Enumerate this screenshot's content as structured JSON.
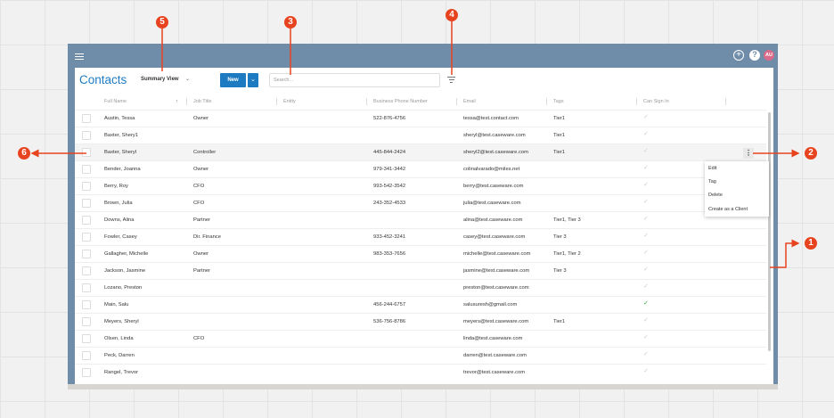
{
  "header": {
    "avatar": "AU",
    "add_icon": "plus-circle-icon",
    "help_icon": "help-icon"
  },
  "toolbar": {
    "title": "Contacts",
    "view": "Summary View",
    "new_label": "New",
    "search_placeholder": "Search..."
  },
  "columns": [
    "Full Name",
    "Job Title",
    "Entity",
    "Business Phone Number",
    "Email",
    "Tags",
    "Can Sign In"
  ],
  "rows": [
    {
      "name": "Austin, Tessa",
      "job": "Owner",
      "entity": "",
      "phone": "522-876-4756",
      "email": "tessa@test.contact.com",
      "tags": "Tier1",
      "sign": false
    },
    {
      "name": "Baxter, Shery1",
      "job": "",
      "entity": "",
      "phone": "",
      "email": "sheryl@test.caseware.com",
      "tags": "Tier1",
      "sign": false
    },
    {
      "name": "Baxter, Sheryl",
      "job": "Controller",
      "entity": "",
      "phone": "445-844-2424",
      "email": "sheryl2@test.caseware.com",
      "tags": "Tier1",
      "sign": false
    },
    {
      "name": "Bender, Joanna",
      "job": "Owner",
      "entity": "",
      "phone": "979-341-3442",
      "email": "colinalvarado@miles.net",
      "tags": "",
      "sign": false
    },
    {
      "name": "Berry, Roy",
      "job": "CFO",
      "entity": "",
      "phone": "993-542-3542",
      "email": "berry@test.caseware.com",
      "tags": "",
      "sign": false
    },
    {
      "name": "Brown, Julia",
      "job": "CFO",
      "entity": "",
      "phone": "243-352-4533",
      "email": "julia@test.caseware.com",
      "tags": "",
      "sign": false
    },
    {
      "name": "Downs, Alina",
      "job": "Partner",
      "entity": "",
      "phone": "",
      "email": "alina@test.caseware.com",
      "tags": "Tier1, Tier 3",
      "sign": false
    },
    {
      "name": "Fowler, Casey",
      "job": "Dir. Finance",
      "entity": "",
      "phone": "933-452-3241",
      "email": "casey@test.caseware.com",
      "tags": "Tier 3",
      "sign": false
    },
    {
      "name": "Gallagher, Michelle",
      "job": "Owner",
      "entity": "",
      "phone": "983-353-7656",
      "email": "michelle@test.caseware.com",
      "tags": "Tier1, Tier 2",
      "sign": false
    },
    {
      "name": "Jackson, Jasmine",
      "job": "Partner",
      "entity": "",
      "phone": "",
      "email": "jasmine@test.caseware.com",
      "tags": "Tier 3",
      "sign": false
    },
    {
      "name": "Lozano, Preston",
      "job": "",
      "entity": "",
      "phone": "",
      "email": "preston@test.caseware.com",
      "tags": "",
      "sign": false
    },
    {
      "name": "Main, Salu",
      "job": "",
      "entity": "",
      "phone": "456-244-6757",
      "email": "salusuresh@gmail.com",
      "tags": "",
      "sign": true
    },
    {
      "name": "Meyers, Sheryl",
      "job": "",
      "entity": "",
      "phone": "536-756-8786",
      "email": "meyers@test.caseware.com",
      "tags": "Tier1",
      "sign": false
    },
    {
      "name": "Olsen, Linda",
      "job": "CFO",
      "entity": "",
      "phone": "",
      "email": "linda@test.caseware.com",
      "tags": "",
      "sign": false
    },
    {
      "name": "Peck, Darren",
      "job": "",
      "entity": "",
      "phone": "",
      "email": "darren@test.caseware.com",
      "tags": "",
      "sign": false
    },
    {
      "name": "Rangel, Trevor",
      "job": "",
      "entity": "",
      "phone": "",
      "email": "trevor@test.caseware.com",
      "tags": "",
      "sign": false
    }
  ],
  "context_menu": [
    "Edit",
    "Tag",
    "Delete",
    "Create as a Client"
  ],
  "annotations": [
    "1",
    "2",
    "3",
    "4",
    "5",
    "6"
  ],
  "colors": {
    "accent": "#1f7bc1",
    "header": "#6f8ca8",
    "annotation": "#e8431f"
  }
}
